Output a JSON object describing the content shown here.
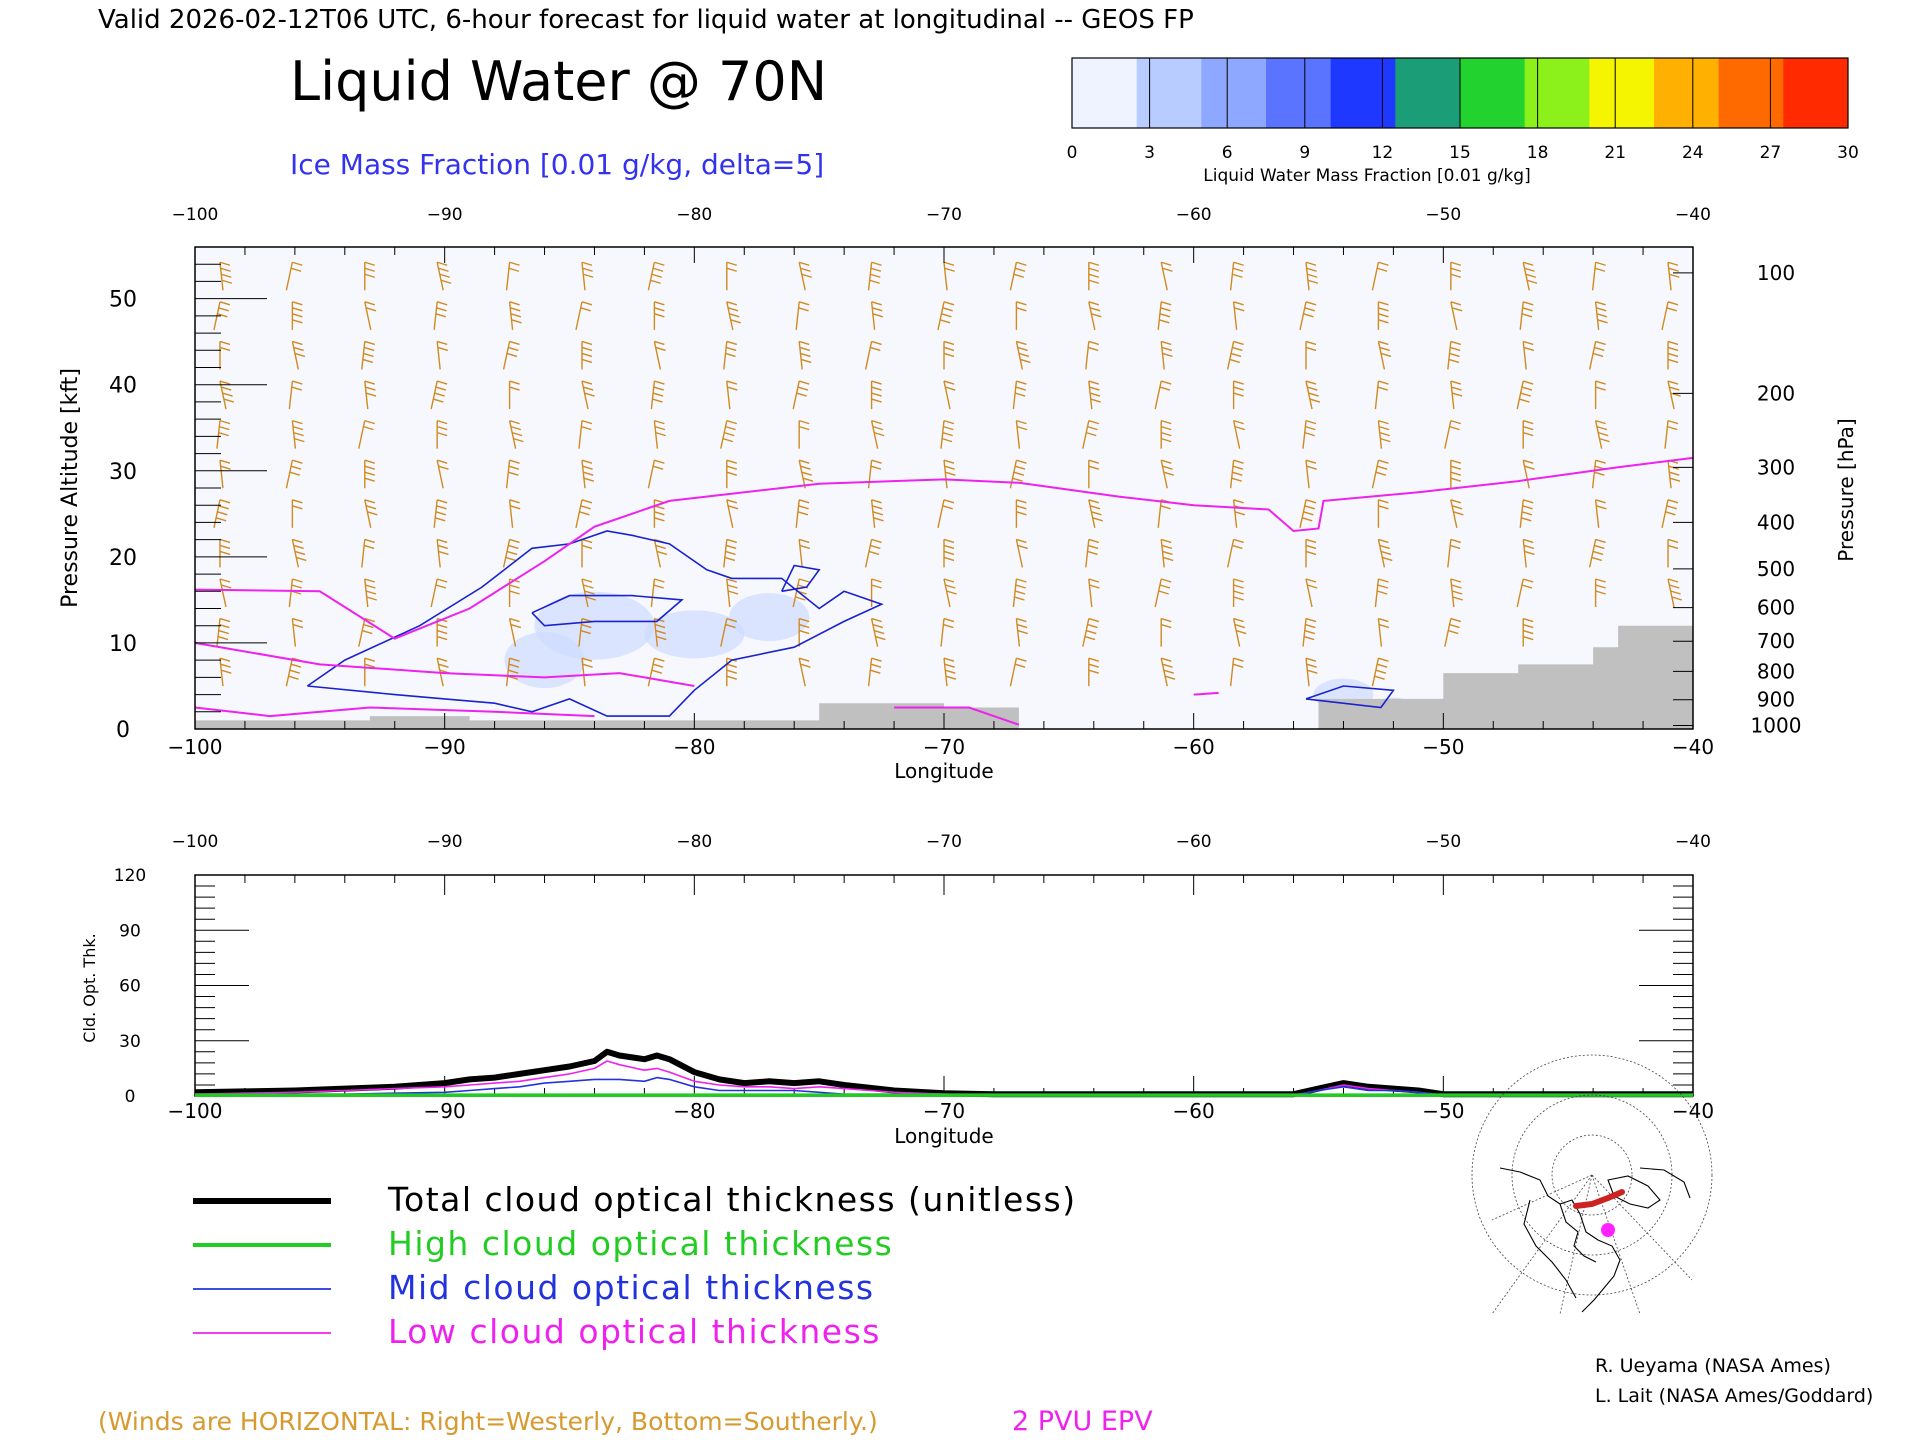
{
  "header": {
    "valid_line": "Valid 2026-02-12T06 UTC, 6-hour forecast for liquid water at longitudinal -- GEOS FP",
    "title": "Liquid Water @ 70N",
    "contour_label": "Ice Mass Fraction [0.01 g/kg, delta=5]"
  },
  "colorbar": {
    "ticks": [
      "0",
      "3",
      "6",
      "9",
      "12",
      "15",
      "18",
      "21",
      "24",
      "27",
      "30"
    ],
    "label": "Liquid Water Mass Fraction [0.01 g/kg]",
    "colors": [
      "#eef3ff",
      "#b8ccff",
      "#8fa8ff",
      "#5b74ff",
      "#1f38ff",
      "#1b9e77",
      "#22d22e",
      "#8cf01a",
      "#f5f500",
      "#ffb000",
      "#ff6a00",
      "#ff2a00"
    ]
  },
  "footer": {
    "winds_note": "(Winds are HORIZONTAL: Right=Westerly, Bottom=Southerly.)",
    "epv_label": "2 PVU EPV",
    "credit_1": "R. Ueyama (NASA Ames)",
    "credit_2": "L. Lait (NASA Ames/Goddard)"
  },
  "legend": [
    {
      "label": "Total cloud optical thickness (unitless)",
      "color": "#000000"
    },
    {
      "label": "High cloud optical thickness",
      "color": "#22cc22"
    },
    {
      "label": "Mid cloud optical thickness",
      "color": "#2233dd"
    },
    {
      "label": "Low cloud optical thickness",
      "color": "#ee22ee"
    }
  ],
  "chart_data": [
    {
      "type": "heatmap",
      "title": "Liquid Water @ 70N",
      "xlabel": "Longitude",
      "ylabel": "Pressure Altitude [kft]",
      "y2label": "Pressure [hPa]",
      "xlim": [
        -100,
        -40
      ],
      "ylim": [
        0,
        56
      ],
      "x_ticks": [
        "−100",
        "−90",
        "−80",
        "−70",
        "−60",
        "−50",
        "−40"
      ],
      "y_ticks": [
        "0",
        "10",
        "20",
        "30",
        "40",
        "50"
      ],
      "pressure_ticks": [
        {
          "label": "100",
          "kft": 53
        },
        {
          "label": "200",
          "kft": 39
        },
        {
          "label": "300",
          "kft": 30.4
        },
        {
          "label": "400",
          "kft": 24
        },
        {
          "label": "500",
          "kft": 18.6
        },
        {
          "label": "600",
          "kft": 14.1
        },
        {
          "label": "700",
          "kft": 10.2
        },
        {
          "label": "800",
          "kft": 6.7
        },
        {
          "label": "900",
          "kft": 3.4
        },
        {
          "label": "1000",
          "kft": 0.4
        }
      ],
      "epv_2pvu": [
        [
          -100,
          16.2
        ],
        [
          -95,
          16
        ],
        [
          -92,
          10.5
        ],
        [
          -89,
          14
        ],
        [
          -86,
          19.5
        ],
        [
          -84,
          23.5
        ],
        [
          -81,
          26.5
        ],
        [
          -75,
          28.5
        ],
        [
          -70,
          29
        ],
        [
          -67,
          28.6
        ],
        [
          -63,
          27
        ],
        [
          -60,
          26
        ],
        [
          -57,
          25.5
        ],
        [
          -56,
          23
        ],
        [
          -55,
          23.3
        ],
        [
          -54.8,
          26.5
        ],
        [
          -51,
          27.5
        ],
        [
          -47,
          28.8
        ],
        [
          -43,
          30.4
        ],
        [
          -40,
          31.5
        ]
      ],
      "ice_contours": [
        [
          [
            -95.5,
            5
          ],
          [
            -94,
            8
          ],
          [
            -91,
            12
          ],
          [
            -88.5,
            16.5
          ],
          [
            -86.5,
            21
          ],
          [
            -85,
            21.5
          ],
          [
            -83.5,
            23
          ],
          [
            -82.5,
            22.5
          ],
          [
            -81,
            21.5
          ],
          [
            -79.5,
            18.5
          ],
          [
            -78.5,
            17.5
          ],
          [
            -76.5,
            17.5
          ],
          [
            -75,
            14
          ],
          [
            -74,
            16
          ],
          [
            -72.5,
            14.5
          ],
          [
            -74,
            12.5
          ],
          [
            -76,
            9.5
          ],
          [
            -78.5,
            8
          ],
          [
            -80,
            4.5
          ],
          [
            -81,
            1.5
          ],
          [
            -83.5,
            1.5
          ],
          [
            -85,
            3.5
          ],
          [
            -86.5,
            2
          ],
          [
            -88,
            3
          ],
          [
            -90,
            3.5
          ],
          [
            -92,
            4
          ],
          [
            -95.5,
            5
          ]
        ],
        [
          [
            -86.5,
            13.5
          ],
          [
            -85,
            15.5
          ],
          [
            -82.5,
            15.5
          ],
          [
            -80.5,
            15
          ],
          [
            -81.5,
            12.5
          ],
          [
            -84,
            12.5
          ],
          [
            -86,
            12
          ],
          [
            -86.5,
            13.5
          ]
        ],
        [
          [
            -76.5,
            16
          ],
          [
            -76,
            19
          ],
          [
            -75,
            18.5
          ],
          [
            -75.5,
            16.5
          ],
          [
            -76.5,
            16
          ]
        ],
        [
          [
            -55.5,
            3.5
          ],
          [
            -54,
            5
          ],
          [
            -52,
            4.5
          ],
          [
            -52.5,
            2.5
          ],
          [
            -55.5,
            3.5
          ]
        ]
      ],
      "terrain_kft": [
        [
          -100,
          1
        ],
        [
          -93,
          1.5
        ],
        [
          -89,
          1
        ],
        [
          -80,
          1
        ],
        [
          -77,
          1
        ],
        [
          -75,
          3
        ],
        [
          -70,
          2.5
        ],
        [
          -67,
          0
        ],
        [
          -56,
          0
        ],
        [
          -55,
          3.5
        ],
        [
          -50,
          6.5
        ],
        [
          -47,
          7.5
        ],
        [
          -44,
          9.5
        ],
        [
          -43,
          12
        ],
        [
          -40,
          12
        ]
      ]
    },
    {
      "type": "line",
      "xlabel": "Longitude",
      "ylabel": "Cld. Opt. Thk.",
      "xlim": [
        -100,
        -40
      ],
      "ylim": [
        0,
        120
      ],
      "x_ticks": [
        "−100",
        "−90",
        "−80",
        "−70",
        "−60",
        "−50",
        "−40"
      ],
      "y_ticks": [
        "0",
        "30",
        "60",
        "90",
        "120"
      ],
      "x": [
        -100,
        -98,
        -96,
        -94,
        -92,
        -90,
        -89,
        -88,
        -87,
        -86,
        -85,
        -84,
        -83.5,
        -83,
        -82,
        -81.5,
        -81,
        -80,
        -79,
        -78,
        -77,
        -76,
        -75,
        -74,
        -72,
        -70,
        -68,
        -66,
        -60,
        -56,
        -55,
        -54,
        -53,
        -52,
        -51,
        -50,
        -45,
        -40
      ],
      "series": [
        {
          "name": "Total cloud optical thickness (unitless)",
          "values": [
            2,
            2.5,
            3,
            4,
            5,
            7,
            9,
            10,
            12,
            14,
            16,
            19,
            24,
            22,
            20,
            22,
            20,
            13,
            9,
            7,
            8,
            7,
            8,
            6,
            3,
            1.5,
            1,
            1,
            1,
            1,
            4,
            7,
            5,
            4,
            3,
            1,
            1,
            1
          ]
        },
        {
          "name": "High cloud optical thickness",
          "values": [
            0.5,
            0.5,
            0.5,
            0.5,
            0.5,
            0.5,
            0.5,
            0.5,
            0.5,
            0.5,
            0.5,
            0.5,
            0.5,
            0.5,
            0.5,
            0.5,
            0.5,
            0.5,
            0.5,
            0.5,
            0.5,
            0.5,
            0.5,
            0.5,
            0.5,
            0.5,
            0.5,
            0.5,
            0.5,
            0.5,
            0.5,
            0.5,
            0.5,
            0.5,
            0.5,
            0.5,
            0.5,
            0.5
          ]
        },
        {
          "name": "Mid cloud optical thickness",
          "values": [
            1,
            1,
            1,
            1,
            1.5,
            2,
            3,
            4,
            5,
            7,
            8,
            9,
            9,
            9,
            8,
            10,
            9,
            5,
            3,
            3,
            3,
            3,
            2,
            1,
            1,
            1,
            0.5,
            0.5,
            0.5,
            0.5,
            3,
            5,
            3,
            3,
            2,
            0.5,
            0.5,
            0.5
          ]
        },
        {
          "name": "Low cloud optical thickness",
          "values": [
            1,
            1.5,
            2,
            3,
            4,
            5,
            6,
            7,
            8,
            10,
            12,
            15,
            19,
            17,
            14,
            15,
            13,
            8,
            6,
            5,
            5,
            4,
            5,
            4,
            2,
            1,
            0.5,
            0.5,
            0.5,
            0.5,
            3,
            6,
            4,
            3,
            2,
            0.5,
            0.5,
            0.5
          ]
        }
      ]
    }
  ]
}
